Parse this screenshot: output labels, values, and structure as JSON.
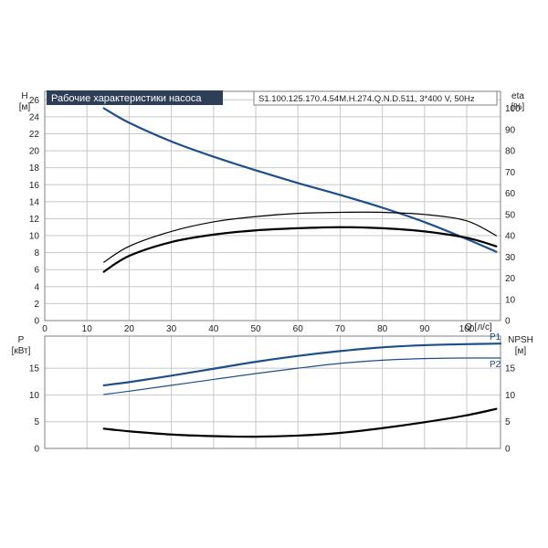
{
  "colors": {
    "blue": "#1e4f8a",
    "black": "#000000",
    "grid": "#c8c8c8",
    "frame": "#808080",
    "banner_bg": "#2d3e57"
  },
  "chart_data": [
    {
      "type": "line",
      "title": "Рабочие характеристики насоса",
      "model": "S1.100.125.170.4.54M.H.274.Q.N.D.511, 3*400 V, 50Hz",
      "xlabel": "Q [л/с]",
      "ylabel_left": [
        "H",
        "[м]"
      ],
      "ylabel_right": [
        "eta",
        "[%]"
      ],
      "xlim": [
        0,
        108
      ],
      "ylim_left": [
        0,
        27
      ],
      "ylim_right": [
        0,
        108
      ],
      "xticks": [
        "0",
        "10",
        "20",
        "30",
        "40",
        "50",
        "60",
        "70",
        "80",
        "90",
        "100"
      ],
      "yticks_left": [
        "0",
        "2",
        "4",
        "6",
        "8",
        "10",
        "12",
        "14",
        "16",
        "18",
        "20",
        "22",
        "24",
        "26"
      ],
      "yticks_right": [
        "0",
        "10",
        "20",
        "30",
        "40",
        "50",
        "60",
        "70",
        "80",
        "90",
        "100"
      ],
      "grid": true,
      "series": [
        {
          "axis": "left",
          "color": "#1e4f8a",
          "width": 2.2,
          "x": [
            14,
            20,
            30,
            40,
            50,
            60,
            70,
            80,
            90,
            100,
            107
          ],
          "y": [
            25.0,
            23.3,
            21.1,
            19.3,
            17.7,
            16.2,
            14.8,
            13.3,
            11.6,
            9.6,
            8.1
          ]
        },
        {
          "axis": "right",
          "color": "#000000",
          "width": 1.2,
          "x": [
            14,
            20,
            30,
            40,
            50,
            60,
            70,
            80,
            90,
            100,
            107
          ],
          "y": [
            27.5,
            35,
            42,
            46.5,
            49,
            50.5,
            51,
            51,
            50,
            47,
            40
          ]
        },
        {
          "axis": "right",
          "color": "#000000",
          "width": 2.2,
          "x": [
            14,
            20,
            30,
            40,
            50,
            60,
            70,
            80,
            90,
            100,
            107
          ],
          "y": [
            23,
            30.5,
            37,
            40.5,
            42.5,
            43.5,
            44,
            43.5,
            42,
            39,
            35
          ]
        }
      ]
    },
    {
      "type": "line",
      "ylabel_left": [
        "P",
        "[кВт]"
      ],
      "ylabel_right": [
        "NPSH",
        "[м]"
      ],
      "xlim": [
        0,
        108
      ],
      "ylim_left": [
        0,
        21
      ],
      "ylim_right": [
        0,
        21
      ],
      "yticks_left": [
        "0",
        "5",
        "10",
        "15"
      ],
      "yticks_right": [
        "0",
        "5",
        "10",
        "15"
      ],
      "grid": true,
      "series": [
        {
          "name": "P1",
          "axis": "left",
          "color": "#1e4f8a",
          "width": 2.2,
          "x": [
            14,
            20,
            30,
            40,
            50,
            60,
            70,
            80,
            90,
            100,
            108
          ],
          "y": [
            11.8,
            12.4,
            13.6,
            14.9,
            16.2,
            17.3,
            18.2,
            18.9,
            19.3,
            19.5,
            19.6
          ]
        },
        {
          "name": "P2",
          "axis": "left",
          "color": "#1e4f8a",
          "width": 1.2,
          "x": [
            14,
            20,
            30,
            40,
            50,
            60,
            70,
            80,
            90,
            100,
            108
          ],
          "y": [
            10.1,
            10.7,
            11.8,
            12.9,
            14.0,
            15.0,
            15.9,
            16.5,
            16.8,
            16.9,
            16.9
          ]
        },
        {
          "axis": "right",
          "color": "#000000",
          "width": 2.2,
          "x": [
            14,
            20,
            30,
            40,
            50,
            60,
            70,
            80,
            90,
            100,
            107
          ],
          "y": [
            3.7,
            3.2,
            2.6,
            2.3,
            2.2,
            2.4,
            2.9,
            3.8,
            4.9,
            6.2,
            7.4
          ]
        }
      ]
    }
  ]
}
